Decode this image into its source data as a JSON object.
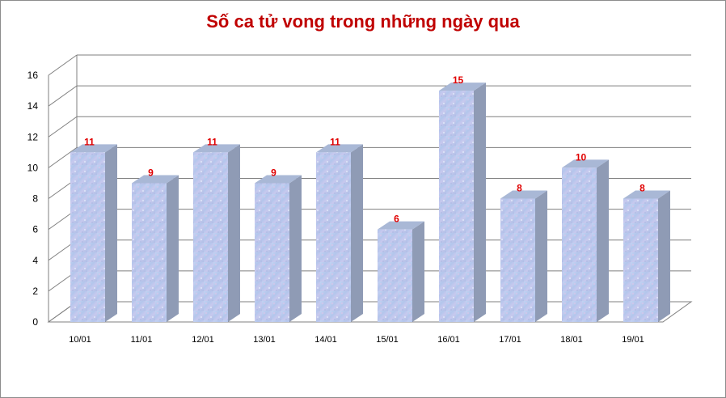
{
  "chart_data": {
    "type": "bar",
    "title": "Số ca tử vong trong những ngày qua",
    "categories": [
      "10/01",
      "11/01",
      "12/01",
      "13/01",
      "14/01",
      "15/01",
      "16/01",
      "17/01",
      "18/01",
      "19/01"
    ],
    "values": [
      11,
      9,
      11,
      9,
      11,
      6,
      15,
      8,
      10,
      8
    ],
    "xlabel": "",
    "ylabel": "",
    "ylim": [
      0,
      16
    ],
    "yticks": [
      0,
      2,
      4,
      6,
      8,
      10,
      12,
      14,
      16
    ],
    "grid": true,
    "legend": "none",
    "data_labels": true,
    "colors": {
      "bar_front": "#b9cbee",
      "bar_side": "#8f9bb5",
      "bar_top": "#a9b8d6",
      "label": "#e00000",
      "title": "#c00000",
      "grid": "#7f7f7f"
    }
  }
}
